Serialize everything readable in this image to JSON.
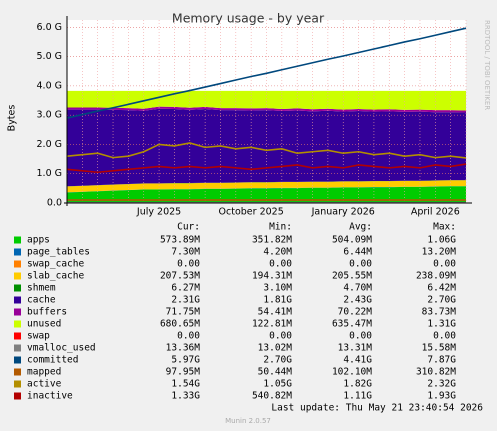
{
  "chart_data": {
    "type": "area",
    "title": "Memory usage - by year",
    "y_label": "Bytes",
    "side_note": "RRDTOOL / TOBI OETIKER",
    "footer": "Last update: Thu May 21 23:40:54 2026",
    "version": "Munin 2.0.57",
    "stat_headers": [
      "Cur:",
      "Min:",
      "Avg:",
      "Max:"
    ],
    "categories": [
      null,
      null,
      null,
      null,
      null,
      null,
      "July 2025",
      null,
      null,
      null,
      null,
      null,
      "October 2025",
      null,
      null,
      null,
      null,
      null,
      "January 2026",
      null,
      null,
      null,
      null,
      null,
      "April 2026",
      null,
      null
    ],
    "ylim": [
      0,
      6.25
    ],
    "yticks": [
      {
        "value": 0,
        "label": "0.0"
      },
      {
        "value": 1,
        "label": "1.0 G"
      },
      {
        "value": 2,
        "label": "2.0 G"
      },
      {
        "value": 3,
        "label": "3.0 G"
      },
      {
        "value": 4,
        "label": "4.0 G"
      },
      {
        "value": 5,
        "label": "5.0 G"
      },
      {
        "value": 6,
        "label": "6.0 G"
      }
    ],
    "grid": true,
    "series": [
      {
        "name": "apps",
        "color": "#00cc00",
        "draw": "stack",
        "cur": "573.89M",
        "min": "351.82M",
        "avg": "504.09M",
        "max": "1.06G",
        "values": [
          0.36,
          0.38,
          0.4,
          0.42,
          0.44,
          0.46,
          0.46,
          0.47,
          0.47,
          0.48,
          0.48,
          0.49,
          0.5,
          0.5,
          0.51,
          0.51,
          0.52,
          0.52,
          0.53,
          0.53,
          0.54,
          0.54,
          0.55,
          0.55,
          0.56,
          0.57,
          0.57
        ]
      },
      {
        "name": "page_tables",
        "color": "#0066b3",
        "draw": "stack",
        "cur": "7.30M",
        "min": "4.20M",
        "avg": "6.44M",
        "max": "13.20M",
        "values": [
          0.006,
          0.006,
          0.006,
          0.006,
          0.006,
          0.006,
          0.006,
          0.006,
          0.006,
          0.006,
          0.006,
          0.006,
          0.006,
          0.006,
          0.006,
          0.006,
          0.006,
          0.006,
          0.006,
          0.006,
          0.006,
          0.006,
          0.006,
          0.006,
          0.006,
          0.006,
          0.006
        ]
      },
      {
        "name": "swap_cache",
        "color": "#ff8000",
        "draw": "stack",
        "cur": "0.00",
        "min": "0.00",
        "avg": "0.00",
        "max": "0.00",
        "values": [
          0,
          0,
          0,
          0,
          0,
          0,
          0,
          0,
          0,
          0,
          0,
          0,
          0,
          0,
          0,
          0,
          0,
          0,
          0,
          0,
          0,
          0,
          0,
          0,
          0,
          0,
          0
        ]
      },
      {
        "name": "slab_cache",
        "color": "#ffcc00",
        "draw": "stack",
        "cur": "207.53M",
        "min": "194.31M",
        "avg": "205.55M",
        "max": "238.09M",
        "values": [
          0.2,
          0.2,
          0.2,
          0.2,
          0.2,
          0.2,
          0.2,
          0.2,
          0.2,
          0.2,
          0.2,
          0.2,
          0.2,
          0.2,
          0.2,
          0.2,
          0.2,
          0.2,
          0.2,
          0.2,
          0.2,
          0.2,
          0.2,
          0.2,
          0.2,
          0.2,
          0.2
        ]
      },
      {
        "name": "shmem",
        "color": "#008f00",
        "draw": "stack",
        "cur": "6.27M",
        "min": "3.10M",
        "avg": "4.70M",
        "max": "6.42M",
        "values": [
          0.005,
          0.005,
          0.005,
          0.005,
          0.005,
          0.005,
          0.005,
          0.005,
          0.005,
          0.005,
          0.005,
          0.005,
          0.005,
          0.005,
          0.005,
          0.005,
          0.005,
          0.005,
          0.005,
          0.005,
          0.005,
          0.005,
          0.005,
          0.005,
          0.005,
          0.005,
          0.005
        ]
      },
      {
        "name": "cache",
        "color": "#330099",
        "draw": "stack",
        "cur": "2.31G",
        "min": "1.81G",
        "avg": "2.43G",
        "max": "2.70G",
        "values": [
          2.62,
          2.6,
          2.58,
          2.55,
          2.52,
          2.48,
          2.55,
          2.53,
          2.5,
          2.52,
          2.48,
          2.47,
          2.45,
          2.46,
          2.42,
          2.44,
          2.4,
          2.42,
          2.38,
          2.4,
          2.37,
          2.38,
          2.35,
          2.36,
          2.33,
          2.32,
          2.31
        ]
      },
      {
        "name": "buffers",
        "color": "#990099",
        "draw": "stack",
        "cur": "71.75M",
        "min": "54.41M",
        "avg": "70.22M",
        "max": "83.73M",
        "values": [
          0.07,
          0.07,
          0.07,
          0.07,
          0.07,
          0.07,
          0.07,
          0.07,
          0.07,
          0.07,
          0.07,
          0.07,
          0.07,
          0.07,
          0.07,
          0.07,
          0.07,
          0.07,
          0.07,
          0.07,
          0.07,
          0.07,
          0.07,
          0.07,
          0.07,
          0.07,
          0.07
        ]
      },
      {
        "name": "unused",
        "color": "#ccff00",
        "draw": "stack",
        "cur": "680.65M",
        "min": "122.81M",
        "avg": "635.47M",
        "max": "1.31G",
        "values": [
          0.57,
          0.57,
          0.57,
          0.58,
          0.59,
          0.61,
          0.54,
          0.55,
          0.58,
          0.55,
          0.59,
          0.59,
          0.6,
          0.59,
          0.62,
          0.6,
          0.63,
          0.61,
          0.64,
          0.62,
          0.64,
          0.63,
          0.65,
          0.64,
          0.66,
          0.66,
          0.67
        ]
      },
      {
        "name": "swap",
        "color": "#ff0000",
        "draw": "stack",
        "cur": "0.00",
        "min": "0.00",
        "avg": "0.00",
        "max": "0.00",
        "values": [
          0,
          0,
          0,
          0,
          0,
          0,
          0,
          0,
          0,
          0,
          0,
          0,
          0,
          0,
          0,
          0,
          0,
          0,
          0,
          0,
          0,
          0,
          0,
          0,
          0,
          0,
          0
        ]
      },
      {
        "name": "vmalloc_used",
        "color": "#808080",
        "draw": "line",
        "cur": "13.36M",
        "min": "13.02M",
        "avg": "13.31M",
        "max": "15.58M",
        "values": [
          0.013,
          0.013,
          0.013,
          0.013,
          0.013,
          0.013,
          0.013,
          0.013,
          0.013,
          0.013,
          0.013,
          0.013,
          0.013,
          0.013,
          0.013,
          0.013,
          0.013,
          0.013,
          0.013,
          0.013,
          0.013,
          0.013,
          0.013,
          0.013,
          0.013,
          0.013,
          0.013
        ]
      },
      {
        "name": "committed",
        "color": "#00487d",
        "draw": "line",
        "cur": "5.97G",
        "min": "2.70G",
        "avg": "4.41G",
        "max": "7.87G",
        "values": [
          2.9,
          3.02,
          3.14,
          3.25,
          3.37,
          3.49,
          3.61,
          3.73,
          3.84,
          3.96,
          4.08,
          4.2,
          4.32,
          4.43,
          4.55,
          4.67,
          4.79,
          4.91,
          5.02,
          5.14,
          5.26,
          5.38,
          5.5,
          5.61,
          5.73,
          5.85,
          5.97
        ]
      },
      {
        "name": "mapped",
        "color": "#b35a00",
        "draw": "line",
        "cur": "97.95M",
        "min": "50.44M",
        "avg": "102.10M",
        "max": "310.82M",
        "values": [
          0.1,
          0.1,
          0.1,
          0.1,
          0.1,
          0.1,
          0.1,
          0.1,
          0.1,
          0.1,
          0.1,
          0.1,
          0.1,
          0.1,
          0.1,
          0.1,
          0.1,
          0.1,
          0.1,
          0.1,
          0.1,
          0.1,
          0.1,
          0.1,
          0.1,
          0.1,
          0.1
        ]
      },
      {
        "name": "active",
        "color": "#b38f00",
        "draw": "line",
        "cur": "1.54G",
        "min": "1.05G",
        "avg": "1.82G",
        "max": "2.32G",
        "values": [
          1.6,
          1.65,
          1.7,
          1.55,
          1.6,
          1.75,
          2.0,
          1.95,
          2.05,
          1.9,
          1.95,
          1.85,
          1.9,
          1.8,
          1.85,
          1.7,
          1.75,
          1.8,
          1.7,
          1.75,
          1.65,
          1.7,
          1.6,
          1.65,
          1.55,
          1.6,
          1.54
        ]
      },
      {
        "name": "inactive",
        "color": "#b30000",
        "draw": "line",
        "cur": "1.33G",
        "min": "540.82M",
        "avg": "1.11G",
        "max": "1.93G",
        "values": [
          1.15,
          1.1,
          1.05,
          1.1,
          1.15,
          1.2,
          1.25,
          1.2,
          1.25,
          1.2,
          1.25,
          1.2,
          1.15,
          1.2,
          1.25,
          1.3,
          1.2,
          1.25,
          1.2,
          1.3,
          1.25,
          1.2,
          1.25,
          1.2,
          1.3,
          1.25,
          1.33
        ]
      }
    ]
  }
}
